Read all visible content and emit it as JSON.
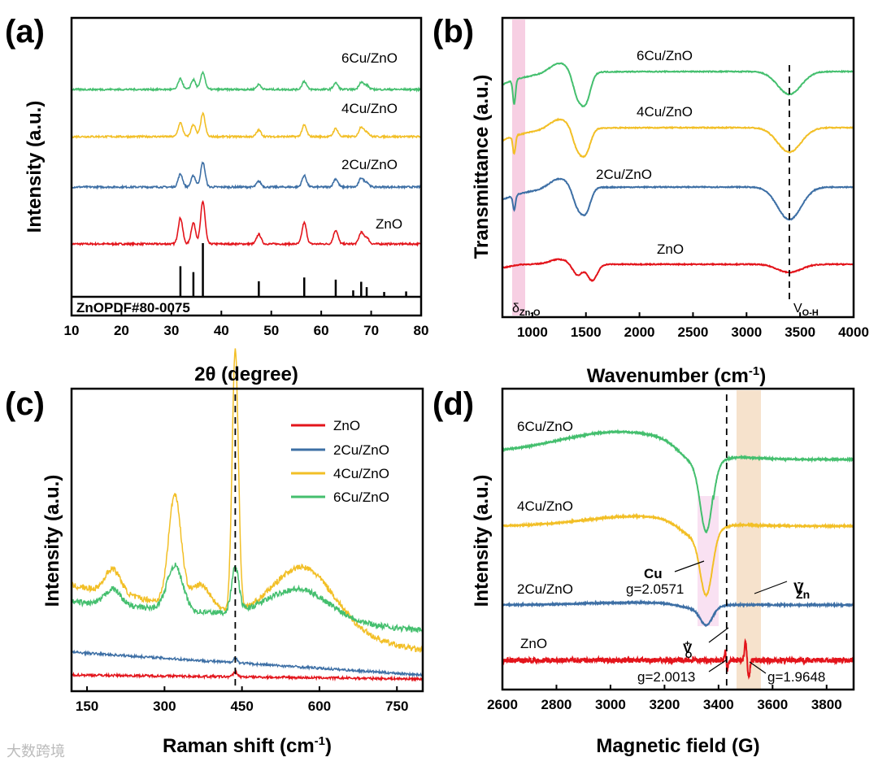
{
  "colors": {
    "ZnO": "#e3141b",
    "2Cu/ZnO": "#3d6fa5",
    "4Cu/ZnO": "#f2bf26",
    "6Cu/ZnO": "#44bf6e"
  },
  "watermark": "大数跨境",
  "chart_data": [
    {
      "panel": "(a)",
      "type": "line",
      "xlabel": "2θ (degree)",
      "ylabel": "Intensity (a.u.)",
      "xlim": [
        10,
        80
      ],
      "xticks": [
        10,
        20,
        30,
        40,
        50,
        60,
        70,
        80
      ],
      "reference_label": "ZnOPDF#80-0075",
      "reference_peaks": [
        [
          31.8,
          0.57
        ],
        [
          34.4,
          0.46
        ],
        [
          36.3,
          1.0
        ],
        [
          47.5,
          0.29
        ],
        [
          56.6,
          0.36
        ],
        [
          62.9,
          0.32
        ],
        [
          66.4,
          0.12
        ],
        [
          68.0,
          0.28
        ],
        [
          69.1,
          0.18
        ],
        [
          72.6,
          0.09
        ],
        [
          77.0,
          0.1
        ]
      ],
      "series": [
        {
          "name": "ZnO",
          "offset": 0,
          "peaks": [
            [
              31.8,
              32
            ],
            [
              34.4,
              26
            ],
            [
              36.3,
              52
            ],
            [
              47.5,
              12
            ],
            [
              56.6,
              26
            ],
            [
              62.9,
              17
            ],
            [
              68.0,
              14
            ],
            [
              69.1,
              8
            ]
          ]
        },
        {
          "name": "2Cu/ZnO",
          "offset": 70,
          "peaks": [
            [
              31.8,
              16
            ],
            [
              34.4,
              14
            ],
            [
              36.3,
              30
            ],
            [
              47.5,
              7
            ],
            [
              56.6,
              14
            ],
            [
              62.9,
              10
            ],
            [
              68.0,
              11
            ],
            [
              69.1,
              6
            ]
          ]
        },
        {
          "name": "4Cu/ZnO",
          "offset": 132,
          "peaks": [
            [
              31.8,
              17
            ],
            [
              34.4,
              15
            ],
            [
              36.3,
              28
            ],
            [
              47.5,
              8
            ],
            [
              56.6,
              14
            ],
            [
              62.9,
              10
            ],
            [
              68.0,
              12
            ],
            [
              69.1,
              6
            ]
          ]
        },
        {
          "name": "6Cu/ZnO",
          "offset": 190,
          "peaks": [
            [
              31.8,
              13
            ],
            [
              34.4,
              12
            ],
            [
              36.3,
              21
            ],
            [
              47.5,
              6
            ],
            [
              56.6,
              10
            ],
            [
              62.9,
              8
            ],
            [
              68.0,
              9
            ],
            [
              69.1,
              5
            ]
          ]
        }
      ]
    },
    {
      "panel": "(b)",
      "type": "line",
      "xlabel": "Wavenumber (cm⁻¹)",
      "xlabel_sup": "-1",
      "ylabel": "Transmittance (a.u.)",
      "xlim": [
        720,
        4000
      ],
      "xticks": [
        1000,
        1500,
        2000,
        2500,
        3000,
        3500,
        4000
      ],
      "annotations": {
        "left_band": "δZn-O",
        "left_band_main": "δ",
        "left_band_sub": "Zn-O",
        "dashed": 3400,
        "dashed_main": "V",
        "dashed_sub": "O-H"
      },
      "series": [
        {
          "name": "ZnO",
          "offset": 0,
          "dips": [
            [
              1420,
              14
            ],
            [
              1560,
              20
            ],
            [
              3400,
              10
            ]
          ]
        },
        {
          "name": "2Cu/ZnO",
          "offset": 95,
          "dips": [
            [
              830,
              18
            ],
            [
              1420,
              22
            ],
            [
              1500,
              28
            ],
            [
              3400,
              40
            ]
          ]
        },
        {
          "name": "4Cu/ZnO",
          "offset": 168,
          "dips": [
            [
              830,
              22
            ],
            [
              1420,
              24
            ],
            [
              1500,
              28
            ],
            [
              3400,
              30
            ]
          ]
        },
        {
          "name": "6Cu/ZnO",
          "offset": 237,
          "dips": [
            [
              830,
              30
            ],
            [
              1420,
              28
            ],
            [
              1500,
              34
            ],
            [
              3400,
              28
            ]
          ]
        }
      ]
    },
    {
      "panel": "(c)",
      "type": "line",
      "xlabel": "Raman shift (cm⁻¹)",
      "xlabel_sup": "-1",
      "ylabel": "Intensity (a.u.)",
      "xlim": [
        120,
        800
      ],
      "xticks": [
        150,
        300,
        450,
        600,
        750
      ],
      "dashed": 437,
      "legend": [
        "ZnO",
        "2Cu/ZnO",
        "4Cu/ZnO",
        "6Cu/ZnO"
      ],
      "legend_position": "top-right",
      "series": [
        {
          "name": "ZnO",
          "base": [
            20,
            5
          ],
          "peaks": [
            [
              437,
              6,
              4
            ]
          ]
        },
        {
          "name": "2Cu/ZnO",
          "base": [
            48,
            28
          ],
          "peaks": [
            [
              437,
              6,
              4
            ]
          ]
        },
        {
          "name": "4Cu/ZnO",
          "base": [
            130,
            80
          ],
          "peaks": [
            [
              200,
              30,
              15
            ],
            [
              320,
              135,
              12
            ],
            [
              370,
              30,
              20
            ],
            [
              437,
              320,
              6
            ],
            [
              570,
              75,
              60
            ]
          ]
        },
        {
          "name": "6Cu/ZnO",
          "base": [
            110,
            35
          ],
          "peaks": [
            [
              200,
              20,
              15
            ],
            [
              320,
              55,
              15
            ],
            [
              437,
              55,
              7
            ],
            [
              560,
              38,
              60
            ]
          ]
        }
      ]
    },
    {
      "panel": "(d)",
      "type": "line",
      "xlabel": "Magnetic field (G)",
      "ylabel": "Intensity (a.u.)",
      "xlim": [
        2600,
        3900
      ],
      "xticks": [
        2600,
        2800,
        3000,
        3200,
        3400,
        3600,
        3800
      ],
      "annotations": {
        "cu": "Cu",
        "cu_g": "g=2.0571",
        "vo": "V",
        "vo_sub": "O",
        "vo_sup": "+",
        "vzn": "V",
        "vzn_sub": "Zn",
        "vzn_sup": "-",
        "g1": "g=2.0013",
        "g2": "g=1.9648",
        "dashed": 3430
      },
      "series": [
        {
          "name": "ZnO",
          "offset": 0
        },
        {
          "name": "2Cu/ZnO",
          "offset": 68
        },
        {
          "name": "4Cu/ZnO",
          "offset": 165
        },
        {
          "name": "6Cu/ZnO",
          "offset": 255
        }
      ]
    }
  ]
}
